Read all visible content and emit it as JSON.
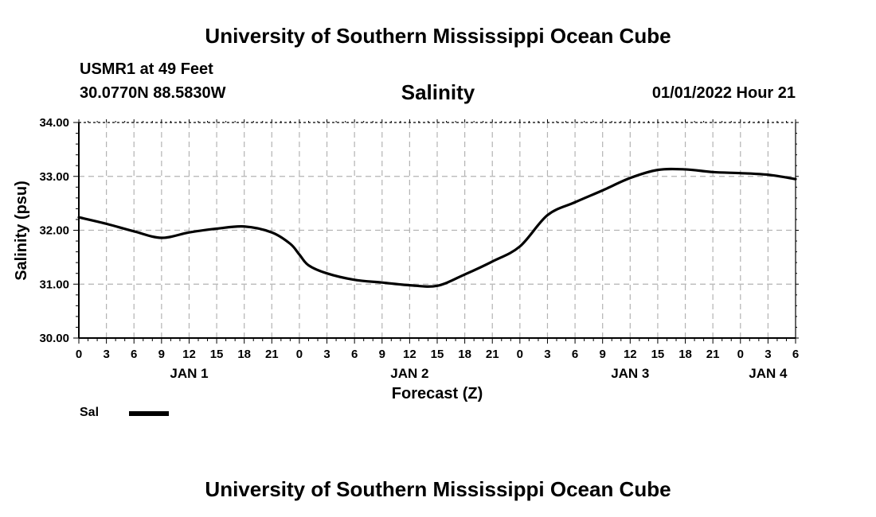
{
  "header": {
    "title_top": "University of Southern Mississippi Ocean Cube",
    "station": "USMR1 at 49 Feet",
    "coords": "30.0770N  88.5830W",
    "timestamp": "01/01/2022 Hour 21",
    "title_bottom": "University of Southern Mississippi Ocean Cube"
  },
  "chart_data": {
    "type": "line",
    "title": "Salinity",
    "xlabel": "Forecast (Z)",
    "ylabel": "Salinity (psu)",
    "xlim": [
      0,
      78
    ],
    "ylim": [
      30.0,
      34.0
    ],
    "grid": true,
    "x_tick_labels": [
      "0",
      "3",
      "6",
      "9",
      "12",
      "15",
      "18",
      "21",
      "0",
      "3",
      "6",
      "9",
      "12",
      "15",
      "18",
      "21",
      "0",
      "3",
      "6",
      "9",
      "12",
      "15",
      "18",
      "21",
      "0",
      "3",
      "6"
    ],
    "y_tick_labels": [
      "30.00",
      "31.00",
      "32.00",
      "33.00",
      "34.00"
    ],
    "day_labels": [
      {
        "text": "JAN 1",
        "x": 12
      },
      {
        "text": "JAN 2",
        "x": 36
      },
      {
        "text": "JAN 3",
        "x": 60
      },
      {
        "text": "JAN 4",
        "x": 75
      }
    ],
    "legend": [
      {
        "name": "Sal",
        "color": "#000000"
      }
    ],
    "series": [
      {
        "name": "Sal",
        "color": "#000000",
        "x": [
          0,
          3,
          6,
          9,
          12,
          15,
          18,
          21,
          23,
          24,
          25,
          27,
          30,
          33,
          36,
          39,
          42,
          45,
          48,
          51,
          54,
          57,
          60,
          63,
          66,
          69,
          72,
          75,
          78
        ],
        "values": [
          32.24,
          32.12,
          31.98,
          31.86,
          31.96,
          32.03,
          32.07,
          31.96,
          31.75,
          31.55,
          31.35,
          31.2,
          31.08,
          31.03,
          30.98,
          30.97,
          31.18,
          31.42,
          31.7,
          32.28,
          32.52,
          32.74,
          32.97,
          33.12,
          33.13,
          33.08,
          33.06,
          33.03,
          32.95
        ]
      }
    ]
  }
}
